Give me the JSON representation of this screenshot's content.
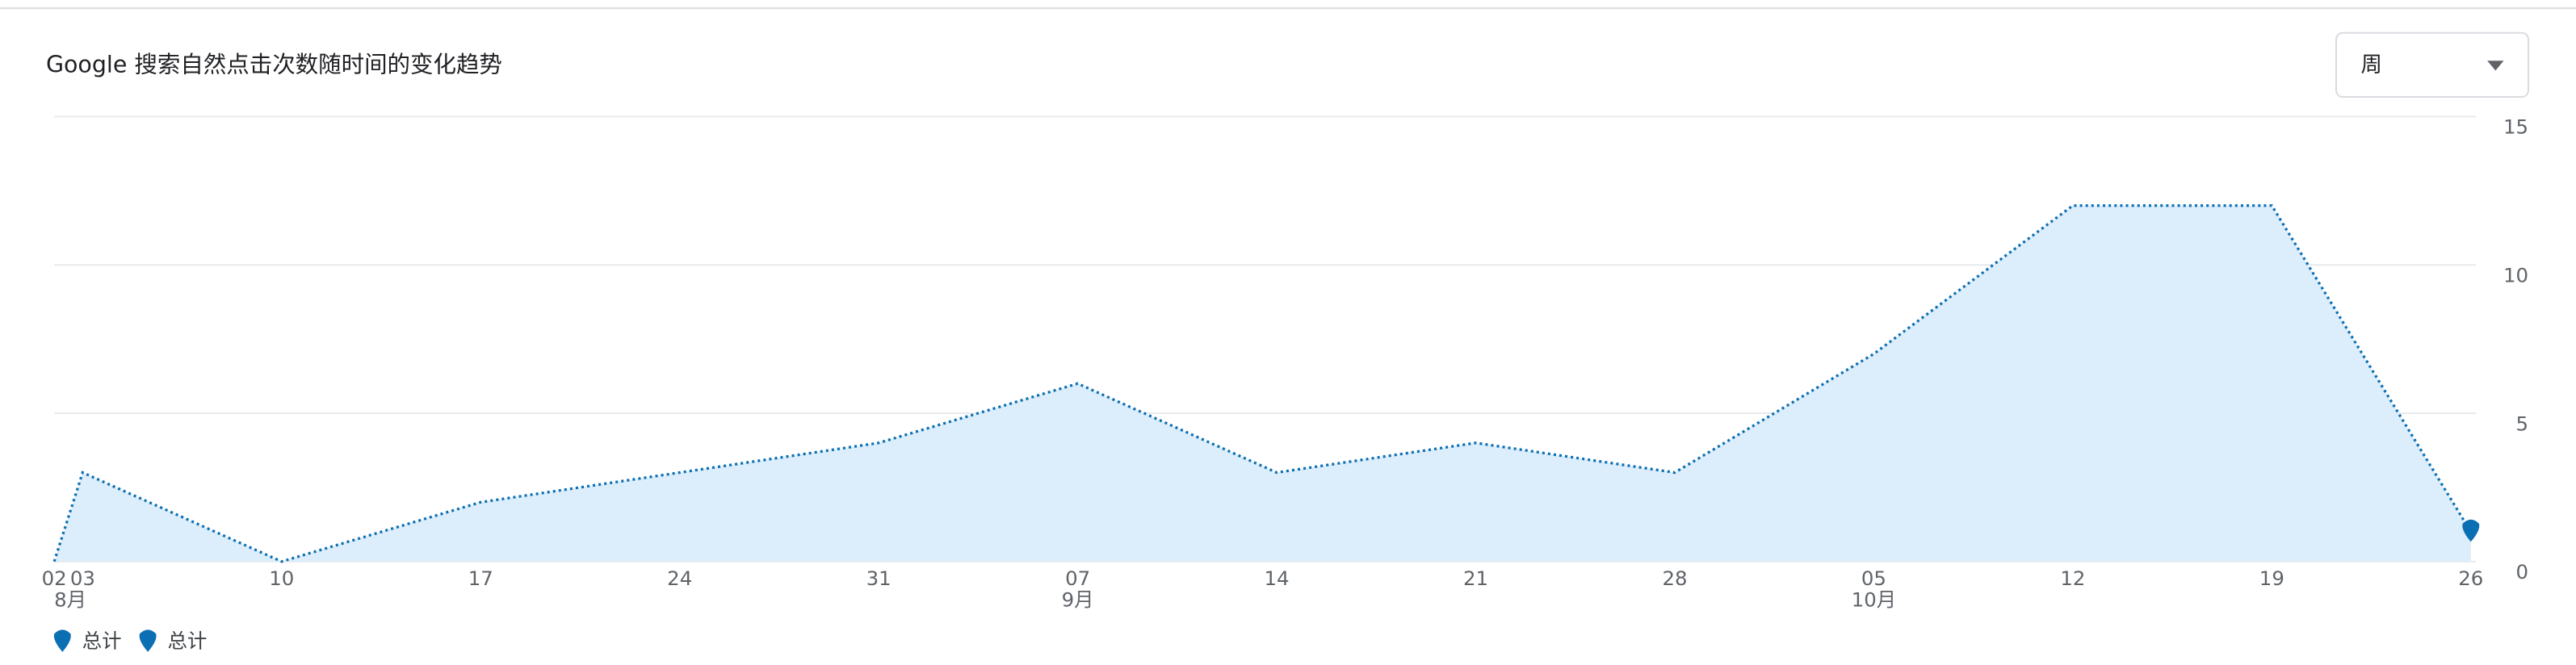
{
  "chart_data": {
    "type": "area",
    "title": "Google 搜索自然点击次数随时间的变化趋势",
    "period_selector": "周",
    "x": [
      "08-02",
      "08-03",
      "08-10",
      "08-17",
      "08-24",
      "08-31",
      "09-07",
      "09-14",
      "09-21",
      "09-28",
      "10-05",
      "10-12",
      "10-19",
      "10-26"
    ],
    "series": [
      {
        "name": "总计",
        "color": "#0b6fb3",
        "fill": "#dcedfb",
        "values": [
          0,
          3,
          0,
          2,
          3,
          4,
          6,
          3,
          4,
          3,
          7,
          12,
          12,
          1
        ]
      }
    ],
    "legend": [
      "总计",
      "总计"
    ],
    "xlim": [
      "08-02",
      "10-26"
    ],
    "xticks": [
      {
        "value": "08-02",
        "label": "02"
      },
      {
        "value": "08-03",
        "label": "03"
      },
      {
        "value": "08-10",
        "label": "10"
      },
      {
        "value": "08-17",
        "label": "17"
      },
      {
        "value": "08-24",
        "label": "24"
      },
      {
        "value": "08-31",
        "label": "31"
      },
      {
        "value": "09-07",
        "label": "07"
      },
      {
        "value": "09-14",
        "label": "14"
      },
      {
        "value": "09-21",
        "label": "21"
      },
      {
        "value": "09-28",
        "label": "28"
      },
      {
        "value": "10-05",
        "label": "05"
      },
      {
        "value": "10-12",
        "label": "12"
      },
      {
        "value": "10-19",
        "label": "19"
      },
      {
        "value": "10-26",
        "label": "26"
      }
    ],
    "month_labels": [
      {
        "value": "08-02",
        "label": "8月"
      },
      {
        "value": "09-07",
        "label": "9月"
      },
      {
        "value": "10-05",
        "label": "10月"
      }
    ],
    "ylim": [
      0,
      15
    ],
    "yticks": [
      0,
      5,
      10,
      15
    ],
    "grid": true,
    "y_axis_side": "right"
  }
}
